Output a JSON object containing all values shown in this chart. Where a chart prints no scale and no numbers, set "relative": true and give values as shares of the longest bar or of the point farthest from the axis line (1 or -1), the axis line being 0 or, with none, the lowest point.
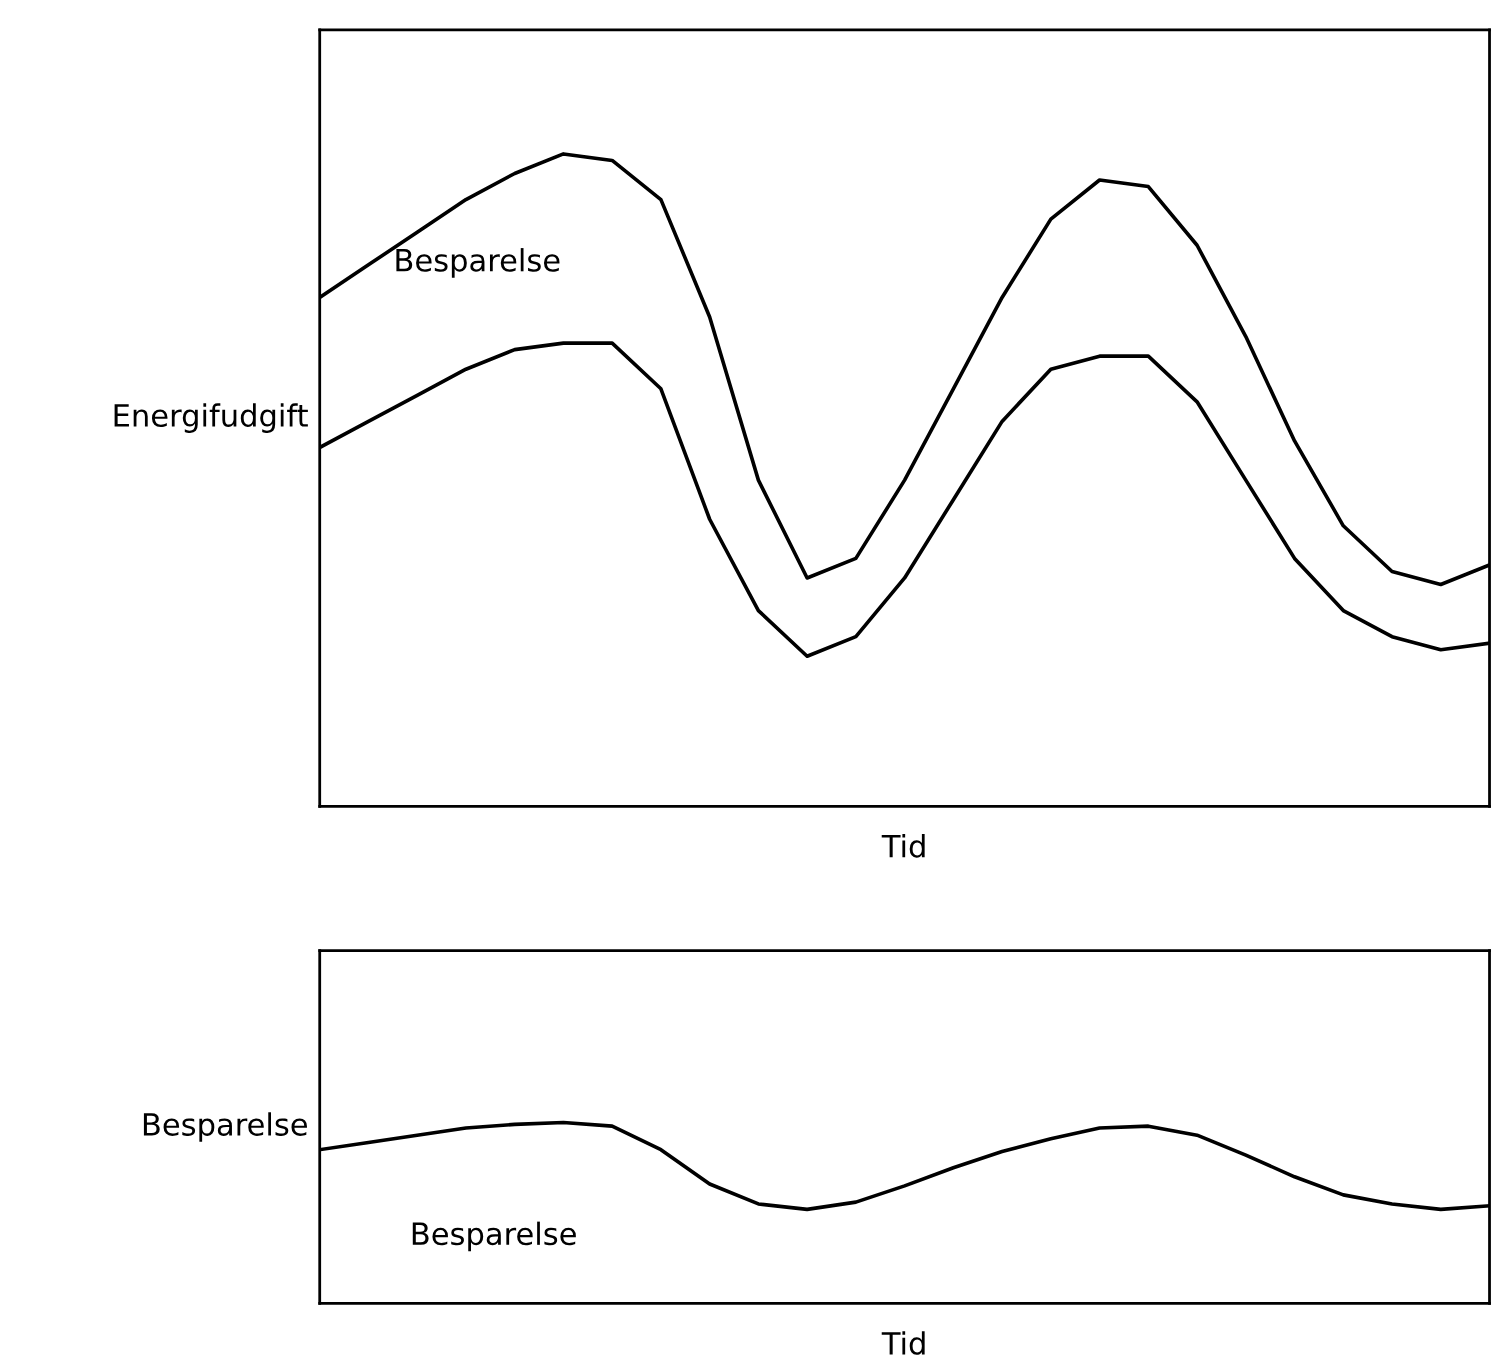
{
  "chart_data": [
    {
      "type": "line",
      "relative": true,
      "ylabel": "Energifudgift",
      "xlabel": "Tid",
      "tick_labels": false,
      "legend": false,
      "categories": [
        null,
        null,
        null,
        null,
        null,
        null,
        null,
        null,
        null,
        null,
        null,
        null,
        null,
        null,
        null,
        null,
        null,
        null,
        null,
        null,
        null,
        null,
        null,
        null,
        null
      ],
      "series": [
        {
          "color": "#000000",
          "values": [
            0.78,
            0.83,
            0.88,
            0.93,
            0.97,
            1.0,
            0.99,
            0.93,
            0.75,
            0.5,
            0.35,
            0.38,
            0.5,
            0.64,
            0.78,
            0.9,
            0.96,
            0.95,
            0.86,
            0.72,
            0.56,
            0.43,
            0.36,
            0.34,
            0.37
          ]
        },
        {
          "color": "#000000",
          "values": [
            0.55,
            0.59,
            0.63,
            0.67,
            0.7,
            0.71,
            0.71,
            0.64,
            0.44,
            0.3,
            0.23,
            0.26,
            0.35,
            0.47,
            0.59,
            0.67,
            0.69,
            0.69,
            0.62,
            0.5,
            0.38,
            0.3,
            0.26,
            0.24,
            0.25
          ]
        }
      ],
      "annotations": [
        "Besparelse"
      ]
    },
    {
      "type": "line",
      "relative": true,
      "ylabel": "Besparelse",
      "xlabel": "Tid",
      "tick_labels": false,
      "legend": false,
      "categories": [
        null,
        null,
        null,
        null,
        null,
        null,
        null,
        null,
        null,
        null,
        null,
        null,
        null,
        null,
        null,
        null,
        null,
        null,
        null,
        null,
        null,
        null,
        null,
        null,
        null
      ],
      "series": [
        {
          "color": "#000000",
          "values": [
            0.85,
            0.89,
            0.93,
            0.97,
            0.99,
            1.0,
            0.98,
            0.85,
            0.66,
            0.55,
            0.52,
            0.56,
            0.65,
            0.75,
            0.84,
            0.91,
            0.97,
            0.98,
            0.93,
            0.82,
            0.7,
            0.6,
            0.55,
            0.52,
            0.54
          ]
        }
      ],
      "annotations": [
        "Besparelse"
      ]
    }
  ]
}
